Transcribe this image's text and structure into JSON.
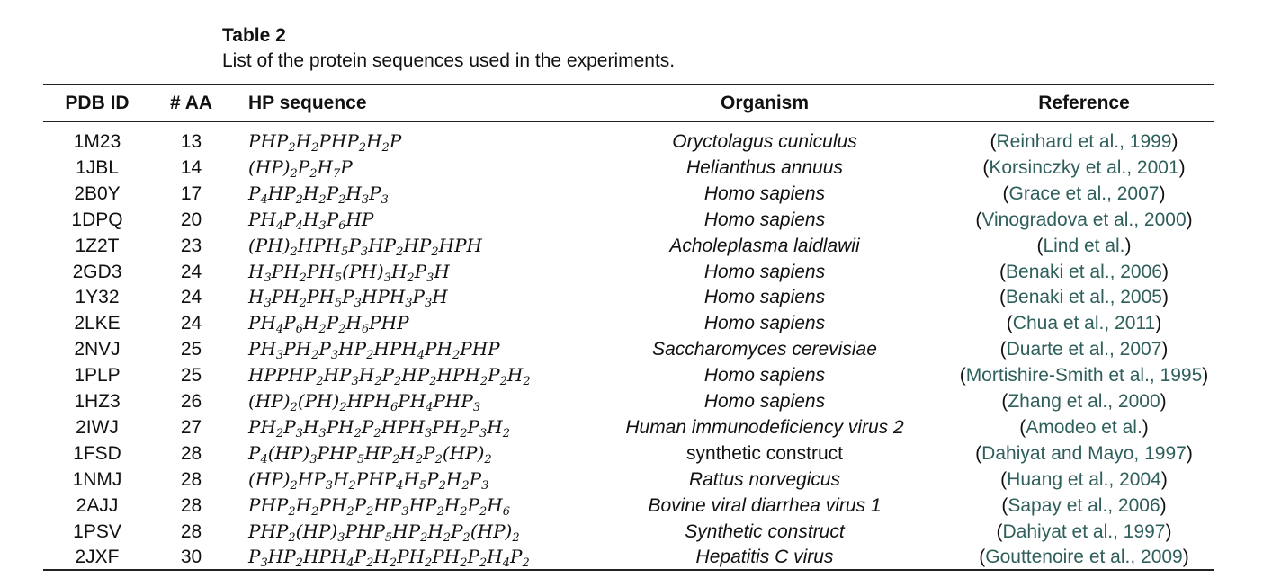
{
  "caption": {
    "title": "Table 2",
    "text": "List of the protein sequences used in the experiments."
  },
  "headers": {
    "pdb_id": "PDB ID",
    "num_aa": "# AA",
    "hp_sequence": "HP sequence",
    "organism": "Organism",
    "reference": "Reference"
  },
  "rows": [
    {
      "pdb": "1M23",
      "aa": "13",
      "seq": [
        [
          "P",
          ""
        ],
        [
          "H",
          ""
        ],
        [
          "P",
          "2"
        ],
        [
          "H",
          "2"
        ],
        [
          "P",
          ""
        ],
        [
          "H",
          ""
        ],
        [
          "P",
          "2"
        ],
        [
          "H",
          "2"
        ],
        [
          "P",
          ""
        ]
      ],
      "organism": "Oryctolagus cuniculus",
      "org_italic": true,
      "ref": "Reinhard et al., 1999"
    },
    {
      "pdb": "1JBL",
      "aa": "14",
      "seq": [
        [
          "(HP)",
          "2"
        ],
        [
          "P",
          "2"
        ],
        [
          "H",
          "7"
        ],
        [
          "P",
          ""
        ]
      ],
      "organism": "Helianthus annuus",
      "org_italic": true,
      "ref": "Korsinczky et al., 2001"
    },
    {
      "pdb": "2B0Y",
      "aa": "17",
      "seq": [
        [
          "P",
          "4"
        ],
        [
          "H",
          ""
        ],
        [
          "P",
          "2"
        ],
        [
          "H",
          "2"
        ],
        [
          "P",
          "2"
        ],
        [
          "H",
          "3"
        ],
        [
          "P",
          "3"
        ]
      ],
      "organism": "Homo sapiens",
      "org_italic": true,
      "ref": "Grace et al., 2007"
    },
    {
      "pdb": "1DPQ",
      "aa": "20",
      "seq": [
        [
          "P",
          ""
        ],
        [
          "H",
          "4"
        ],
        [
          "P",
          "4"
        ],
        [
          "H",
          "3"
        ],
        [
          "P",
          "6"
        ],
        [
          "H",
          ""
        ],
        [
          "P",
          ""
        ]
      ],
      "organism": "Homo sapiens",
      "org_italic": true,
      "ref": "Vinogradova et al., 2000"
    },
    {
      "pdb": "1Z2T",
      "aa": "23",
      "seq": [
        [
          "(PH)",
          "2"
        ],
        [
          "H",
          ""
        ],
        [
          "P",
          ""
        ],
        [
          "H",
          "5"
        ],
        [
          "P",
          "3"
        ],
        [
          "H",
          ""
        ],
        [
          "P",
          "2"
        ],
        [
          "H",
          ""
        ],
        [
          "P",
          "2"
        ],
        [
          "H",
          ""
        ],
        [
          "P",
          ""
        ],
        [
          "H",
          ""
        ]
      ],
      "organism": "Acholeplasma laidlawii",
      "org_italic": true,
      "ref": "Lind et al."
    },
    {
      "pdb": "2GD3",
      "aa": "24",
      "seq": [
        [
          "H",
          "3"
        ],
        [
          "P",
          ""
        ],
        [
          "H",
          "2"
        ],
        [
          "P",
          ""
        ],
        [
          "H",
          "5"
        ],
        [
          "(PH)",
          "3"
        ],
        [
          "H",
          "2"
        ],
        [
          "P",
          "3"
        ],
        [
          "H",
          ""
        ]
      ],
      "organism": "Homo sapiens",
      "org_italic": true,
      "ref": "Benaki et al., 2006"
    },
    {
      "pdb": "1Y32",
      "aa": "24",
      "seq": [
        [
          "H",
          "3"
        ],
        [
          "P",
          ""
        ],
        [
          "H",
          "2"
        ],
        [
          "P",
          ""
        ],
        [
          "H",
          "5"
        ],
        [
          "P",
          "3"
        ],
        [
          "H",
          ""
        ],
        [
          "P",
          ""
        ],
        [
          "H",
          "3"
        ],
        [
          "P",
          "3"
        ],
        [
          "H",
          ""
        ]
      ],
      "organism": "Homo sapiens",
      "org_italic": true,
      "ref": "Benaki et al., 2005"
    },
    {
      "pdb": "2LKE",
      "aa": "24",
      "seq": [
        [
          "P",
          ""
        ],
        [
          "H",
          "4"
        ],
        [
          "P",
          "6"
        ],
        [
          "H",
          "2"
        ],
        [
          "P",
          "2"
        ],
        [
          "H",
          "6"
        ],
        [
          "P",
          ""
        ],
        [
          "H",
          ""
        ],
        [
          "P",
          ""
        ]
      ],
      "organism": "Homo sapiens",
      "org_italic": true,
      "ref": "Chua et al., 2011"
    },
    {
      "pdb": "2NVJ",
      "aa": "25",
      "seq": [
        [
          "P",
          ""
        ],
        [
          "H",
          "3"
        ],
        [
          "P",
          ""
        ],
        [
          "H",
          "2"
        ],
        [
          "P",
          "3"
        ],
        [
          "H",
          ""
        ],
        [
          "P",
          "2"
        ],
        [
          "H",
          ""
        ],
        [
          "P",
          ""
        ],
        [
          "H",
          "4"
        ],
        [
          "P",
          ""
        ],
        [
          "H",
          "2"
        ],
        [
          "P",
          ""
        ],
        [
          "H",
          ""
        ],
        [
          "P",
          ""
        ]
      ],
      "organism": "Saccharomyces cerevisiae",
      "org_italic": true,
      "ref": "Duarte et al., 2007"
    },
    {
      "pdb": "1PLP",
      "aa": "25",
      "seq": [
        [
          "H",
          ""
        ],
        [
          "P",
          ""
        ],
        [
          "P",
          ""
        ],
        [
          "H",
          ""
        ],
        [
          "P",
          "2"
        ],
        [
          "H",
          ""
        ],
        [
          "P",
          "3"
        ],
        [
          "H",
          "2"
        ],
        [
          "P",
          "2"
        ],
        [
          "H",
          ""
        ],
        [
          "P",
          "2"
        ],
        [
          "H",
          ""
        ],
        [
          "P",
          ""
        ],
        [
          "H",
          "2"
        ],
        [
          "P",
          "2"
        ],
        [
          "H",
          "2"
        ]
      ],
      "organism": "Homo sapiens",
      "org_italic": true,
      "ref": "Mortishire-Smith et al., 1995"
    },
    {
      "pdb": "1HZ3",
      "aa": "26",
      "seq": [
        [
          "(HP)",
          "2"
        ],
        [
          "(PH)",
          "2"
        ],
        [
          "H",
          ""
        ],
        [
          "P",
          ""
        ],
        [
          "H",
          "6"
        ],
        [
          "P",
          ""
        ],
        [
          "H",
          "4"
        ],
        [
          "P",
          ""
        ],
        [
          "H",
          ""
        ],
        [
          "P",
          "3"
        ]
      ],
      "organism": "Homo sapiens",
      "org_italic": true,
      "ref": "Zhang et al., 2000"
    },
    {
      "pdb": "2IWJ",
      "aa": "27",
      "seq": [
        [
          "P",
          ""
        ],
        [
          "H",
          "2"
        ],
        [
          "P",
          "3"
        ],
        [
          "H",
          "3"
        ],
        [
          "P",
          ""
        ],
        [
          "H",
          "2"
        ],
        [
          "P",
          "2"
        ],
        [
          "H",
          ""
        ],
        [
          "P",
          ""
        ],
        [
          "H",
          "3"
        ],
        [
          "P",
          ""
        ],
        [
          "H",
          "2"
        ],
        [
          "P",
          "3"
        ],
        [
          "H",
          "2"
        ]
      ],
      "organism": "Human immunodeficiency virus 2",
      "org_italic": true,
      "ref": "Amodeo et al."
    },
    {
      "pdb": "1FSD",
      "aa": "28",
      "seq": [
        [
          "P",
          "4"
        ],
        [
          "(HP)",
          "3"
        ],
        [
          "P",
          ""
        ],
        [
          "H",
          ""
        ],
        [
          "P",
          "5"
        ],
        [
          "H",
          ""
        ],
        [
          "P",
          "2"
        ],
        [
          "H",
          "2"
        ],
        [
          "P",
          "2"
        ],
        [
          "(HP)",
          "2"
        ]
      ],
      "organism": "synthetic construct",
      "org_italic": false,
      "ref": "Dahiyat and Mayo, 1997"
    },
    {
      "pdb": "1NMJ",
      "aa": "28",
      "seq": [
        [
          "(HP)",
          "2"
        ],
        [
          "H",
          ""
        ],
        [
          "P",
          "3"
        ],
        [
          "H",
          "2"
        ],
        [
          "P",
          ""
        ],
        [
          "H",
          ""
        ],
        [
          "P",
          "4"
        ],
        [
          "H",
          "5"
        ],
        [
          "P",
          "2"
        ],
        [
          "H",
          "2"
        ],
        [
          "P",
          "3"
        ]
      ],
      "organism": "Rattus norvegicus",
      "org_italic": true,
      "ref": "Huang et al., 2004"
    },
    {
      "pdb": "2AJJ",
      "aa": "28",
      "seq": [
        [
          "P",
          ""
        ],
        [
          "H",
          ""
        ],
        [
          "P",
          "2"
        ],
        [
          "H",
          "2"
        ],
        [
          "P",
          ""
        ],
        [
          "H",
          "2"
        ],
        [
          "P",
          "2"
        ],
        [
          "H",
          ""
        ],
        [
          "P",
          "3"
        ],
        [
          "H",
          ""
        ],
        [
          "P",
          "2"
        ],
        [
          "H",
          "2"
        ],
        [
          "P",
          "2"
        ],
        [
          "H",
          "6"
        ]
      ],
      "organism": "Bovine viral diarrhea virus 1",
      "org_italic": true,
      "ref": "Sapay et al., 2006"
    },
    {
      "pdb": "1PSV",
      "aa": "28",
      "seq": [
        [
          "P",
          ""
        ],
        [
          "H",
          ""
        ],
        [
          "P",
          "2"
        ],
        [
          "(HP)",
          "3"
        ],
        [
          "P",
          ""
        ],
        [
          "H",
          ""
        ],
        [
          "P",
          "5"
        ],
        [
          "H",
          ""
        ],
        [
          "P",
          "2"
        ],
        [
          "H",
          "2"
        ],
        [
          "P",
          "2"
        ],
        [
          "(HP)",
          "2"
        ]
      ],
      "organism": "Synthetic construct",
      "org_italic": true,
      "ref": "Dahiyat et al., 1997"
    },
    {
      "pdb": "2JXF",
      "aa": "30",
      "seq": [
        [
          "P",
          "3"
        ],
        [
          "H",
          ""
        ],
        [
          "P",
          "2"
        ],
        [
          "H",
          ""
        ],
        [
          "P",
          ""
        ],
        [
          "H",
          "4"
        ],
        [
          "P",
          "2"
        ],
        [
          "H",
          "2"
        ],
        [
          "P",
          ""
        ],
        [
          "H",
          "2"
        ],
        [
          "P",
          ""
        ],
        [
          "H",
          "2"
        ],
        [
          "P",
          "2"
        ],
        [
          "H",
          "4"
        ],
        [
          "P",
          "2"
        ]
      ],
      "organism": "Hepatitis C virus",
      "org_italic": true,
      "ref": "Gouttenoire et al., 2009"
    }
  ]
}
